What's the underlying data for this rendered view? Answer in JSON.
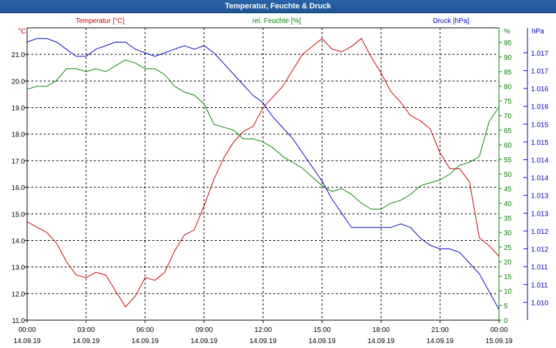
{
  "chart_data": {
    "type": "line",
    "title": "Temperatur, Feuchte & Druck",
    "axes": {
      "temperature": {
        "unit_label": "°C",
        "header": "Temperatur [°C]",
        "color": "#c00000",
        "range": [
          11.0,
          22.0
        ],
        "ticks": [
          "11.0",
          "12.0",
          "13.0",
          "14.0",
          "15.0",
          "16.0",
          "17.0",
          "18.0",
          "19.0",
          "20.0",
          "21.0"
        ]
      },
      "humidity": {
        "unit_label": "%",
        "header": "rel. Feuchte [%]",
        "color": "#008000",
        "range": [
          0,
          100
        ],
        "ticks": [
          "0",
          "5",
          "10",
          "15",
          "20",
          "25",
          "30",
          "35",
          "40",
          "45",
          "50",
          "55",
          "60",
          "65",
          "70",
          "75",
          "80",
          "85",
          "90",
          "95"
        ]
      },
      "pressure": {
        "unit_label": "hPa",
        "header": "Druck [hPa]",
        "color": "#0000c0",
        "range": [
          1009.5,
          1017.7
        ],
        "ticks": [
          "1.010",
          "1.011",
          "1.011",
          "1.012",
          "1.012",
          "1.013",
          "1.013",
          "1.014",
          "1.014",
          "1.015",
          "1.015",
          "1.016",
          "1.016",
          "1.017",
          "1.017"
        ]
      }
    },
    "x_ticks": [
      {
        "time": "00:00",
        "date": "14.09.19"
      },
      {
        "time": "03:00",
        "date": "14.09.19"
      },
      {
        "time": "06:00",
        "date": "14.09.19"
      },
      {
        "time": "09:00",
        "date": "14.09.19"
      },
      {
        "time": "12:00",
        "date": "14.09.19"
      },
      {
        "time": "15:00",
        "date": "14.09.19"
      },
      {
        "time": "18:00",
        "date": "14.09.19"
      },
      {
        "time": "21:00",
        "date": "14.09.19"
      },
      {
        "time": "00:00",
        "date": "15.09.19"
      }
    ],
    "grid": true,
    "series": [
      {
        "name": "Temperatur [°C]",
        "axis": "temperature",
        "color": "#c00000",
        "x": [
          0,
          0.5,
          1,
          1.5,
          2,
          2.5,
          3,
          3.5,
          4,
          4.5,
          5,
          5.5,
          6,
          6.5,
          7,
          7.5,
          8,
          8.5,
          9,
          9.5,
          10,
          10.5,
          11,
          11.5,
          12,
          12.5,
          13,
          13.5,
          14,
          14.5,
          15,
          15.5,
          16,
          16.5,
          17,
          17.5,
          18,
          18.5,
          19,
          19.5,
          20,
          20.5,
          21,
          21.5,
          22,
          22.5,
          23,
          23.5,
          24
        ],
        "values": [
          14.7,
          14.5,
          14.3,
          13.9,
          13.2,
          12.7,
          12.6,
          12.8,
          12.7,
          12.1,
          11.5,
          11.9,
          12.6,
          12.5,
          12.8,
          13.6,
          14.2,
          14.4,
          15.3,
          16.3,
          17.1,
          17.7,
          18.1,
          18.3,
          19.0,
          19.4,
          19.8,
          20.4,
          21.0,
          21.3,
          21.6,
          21.2,
          21.1,
          21.3,
          21.6,
          20.9,
          20.3,
          19.6,
          19.2,
          18.7,
          18.5,
          18.2,
          17.3,
          16.7,
          16.7,
          16.2,
          14.1,
          13.8,
          13.4
        ]
      },
      {
        "name": "rel. Feuchte [%]",
        "axis": "humidity",
        "color": "#008000",
        "x": [
          0,
          0.5,
          1,
          1.5,
          2,
          2.5,
          3,
          3.5,
          4,
          4.5,
          5,
          5.5,
          6,
          6.5,
          7,
          7.5,
          8,
          8.5,
          9,
          9.5,
          10,
          10.5,
          11,
          11.5,
          12,
          12.5,
          13,
          13.5,
          14,
          14.5,
          15,
          15.5,
          16,
          16.5,
          17,
          17.5,
          18,
          18.5,
          19,
          19.5,
          20,
          20.5,
          21,
          21.5,
          22,
          22.5,
          23,
          23.5,
          24
        ],
        "values": [
          79,
          80,
          80,
          82,
          86,
          86,
          85,
          86,
          85,
          87,
          89,
          88,
          86,
          86,
          84,
          80,
          78,
          77,
          74,
          67,
          66,
          65,
          62,
          62,
          61,
          59,
          56,
          54,
          52,
          49,
          46,
          44,
          45,
          43,
          40,
          38,
          38,
          40,
          41,
          43,
          46,
          47,
          48,
          50,
          53,
          54,
          56,
          68,
          73
        ]
      },
      {
        "name": "Druck [hPa]",
        "axis": "pressure",
        "color": "#0000c0",
        "x": [
          0,
          0.5,
          1,
          1.5,
          2,
          2.5,
          3,
          3.5,
          4,
          4.5,
          5,
          5.5,
          6,
          6.5,
          7,
          7.5,
          8,
          8.5,
          9,
          9.5,
          10,
          10.5,
          11,
          11.5,
          12,
          12.5,
          13,
          13.5,
          14,
          14.5,
          15,
          15.5,
          16,
          16.5,
          17,
          17.5,
          18,
          18.5,
          19,
          19.5,
          20,
          20.5,
          21,
          21.5,
          22,
          22.5,
          23,
          23.5,
          24
        ],
        "values": [
          1017.3,
          1017.4,
          1017.4,
          1017.3,
          1017.1,
          1016.9,
          1016.9,
          1017.1,
          1017.2,
          1017.3,
          1017.3,
          1017.1,
          1017.0,
          1016.9,
          1017.0,
          1017.1,
          1017.2,
          1017.1,
          1017.2,
          1017.0,
          1016.7,
          1016.4,
          1016.1,
          1015.8,
          1015.6,
          1015.2,
          1014.9,
          1014.6,
          1014.2,
          1013.8,
          1013.4,
          1012.9,
          1012.5,
          1012.1,
          1012.1,
          1012.1,
          1012.1,
          1012.1,
          1012.2,
          1012.1,
          1011.8,
          1011.6,
          1011.5,
          1011.5,
          1011.4,
          1011.1,
          1010.8,
          1010.3,
          1009.8
        ]
      }
    ]
  }
}
